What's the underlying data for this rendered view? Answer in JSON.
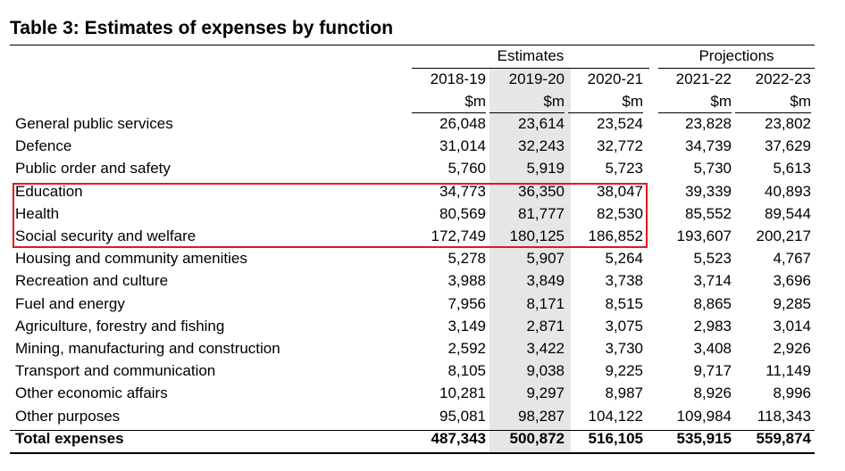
{
  "title": "Table 3: Estimates of expenses by function",
  "groups": {
    "estimates": "Estimates",
    "projections": "Projections"
  },
  "years": [
    "2018-19",
    "2019-20",
    "2020-21",
    "2021-22",
    "2022-23"
  ],
  "units": [
    "$m",
    "$m",
    "$m",
    "$m",
    "$m"
  ],
  "highlight_color": "#e0191e",
  "shade_color": "#e6e6e6",
  "rows": [
    {
      "label": "General public services",
      "values": [
        "26,048",
        "23,614",
        "23,524",
        "23,828",
        "23,802"
      ]
    },
    {
      "label": "Defence",
      "values": [
        "31,014",
        "32,243",
        "32,772",
        "34,739",
        "37,629"
      ]
    },
    {
      "label": "Public order and safety",
      "values": [
        "5,760",
        "5,919",
        "5,723",
        "5,730",
        "5,613"
      ]
    },
    {
      "label": "Education",
      "values": [
        "34,773",
        "36,350",
        "38,047",
        "39,339",
        "40,893"
      ]
    },
    {
      "label": "Health",
      "values": [
        "80,569",
        "81,777",
        "82,530",
        "85,552",
        "89,544"
      ]
    },
    {
      "label": "Social security and welfare",
      "values": [
        "172,749",
        "180,125",
        "186,852",
        "193,607",
        "200,217"
      ]
    },
    {
      "label": "Housing and community amenities",
      "values": [
        "5,278",
        "5,907",
        "5,264",
        "5,523",
        "4,767"
      ]
    },
    {
      "label": "Recreation and culture",
      "values": [
        "3,988",
        "3,849",
        "3,738",
        "3,714",
        "3,696"
      ]
    },
    {
      "label": "Fuel and energy",
      "values": [
        "7,956",
        "8,171",
        "8,515",
        "8,865",
        "9,285"
      ]
    },
    {
      "label": "Agriculture, forestry and fishing",
      "values": [
        "3,149",
        "2,871",
        "3,075",
        "2,983",
        "3,014"
      ]
    },
    {
      "label": "Mining, manufacturing and construction",
      "values": [
        "2,592",
        "3,422",
        "3,730",
        "3,408",
        "2,926"
      ]
    },
    {
      "label": "Transport and communication",
      "values": [
        "8,105",
        "9,038",
        "9,225",
        "9,717",
        "11,149"
      ]
    },
    {
      "label": "Other economic affairs",
      "values": [
        "10,281",
        "9,297",
        "8,987",
        "8,926",
        "8,996"
      ]
    },
    {
      "label": "Other purposes",
      "values": [
        "95,081",
        "98,287",
        "104,122",
        "109,984",
        "118,343"
      ]
    }
  ],
  "total": {
    "label": "Total expenses",
    "values": [
      "487,343",
      "500,872",
      "516,105",
      "535,915",
      "559,874"
    ]
  }
}
